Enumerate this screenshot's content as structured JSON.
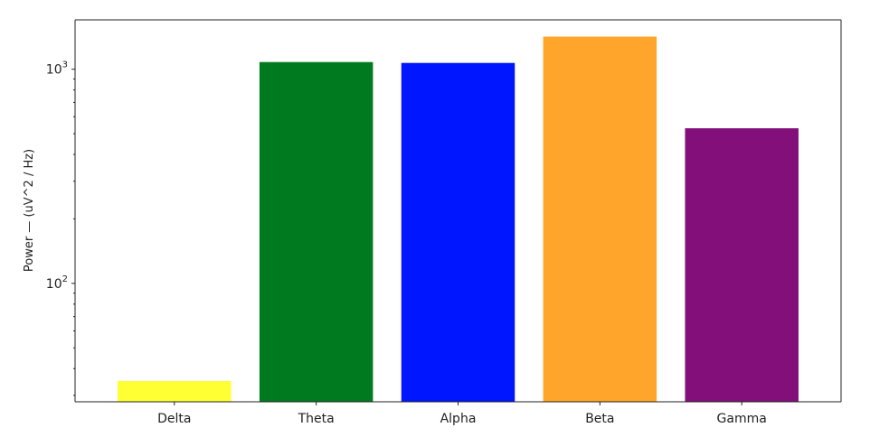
{
  "chart_data": {
    "type": "bar",
    "title": "",
    "xlabel": "",
    "ylabel": "Power — (uV^2 / Hz)",
    "yscale": "log",
    "ylim": [
      28,
      1700
    ],
    "categories": [
      "Delta",
      "Theta",
      "Alpha",
      "Beta",
      "Gamma"
    ],
    "values": [
      35,
      1080,
      1070,
      1420,
      530
    ],
    "colors": [
      "#ffff33",
      "#007a1f",
      "#0016ff",
      "#ffa52c",
      "#820f7a"
    ],
    "yticks": [
      {
        "value": 100,
        "base": "10",
        "exp": "2"
      },
      {
        "value": 1000,
        "base": "10",
        "exp": "3"
      }
    ],
    "grid": false
  }
}
